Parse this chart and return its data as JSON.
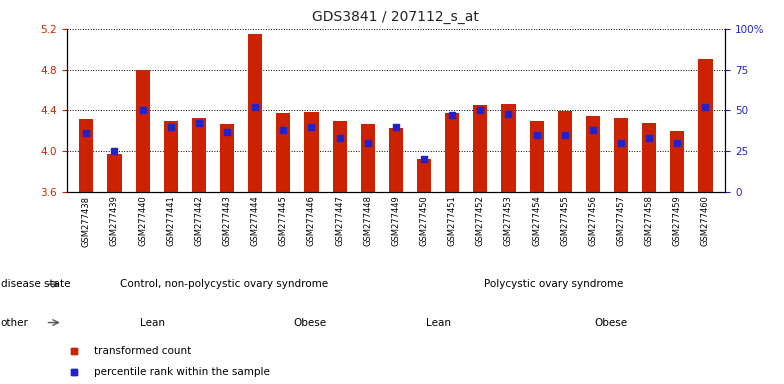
{
  "title": "GDS3841 / 207112_s_at",
  "samples": [
    "GSM277438",
    "GSM277439",
    "GSM277440",
    "GSM277441",
    "GSM277442",
    "GSM277443",
    "GSM277444",
    "GSM277445",
    "GSM277446",
    "GSM277447",
    "GSM277448",
    "GSM277449",
    "GSM277450",
    "GSM277451",
    "GSM277452",
    "GSM277453",
    "GSM277454",
    "GSM277455",
    "GSM277456",
    "GSM277457",
    "GSM277458",
    "GSM277459",
    "GSM277460"
  ],
  "bar_values": [
    4.32,
    3.97,
    4.8,
    4.3,
    4.33,
    4.27,
    5.15,
    4.37,
    4.38,
    4.3,
    4.27,
    4.23,
    3.92,
    4.37,
    4.45,
    4.46,
    4.3,
    4.39,
    4.35,
    4.33,
    4.28,
    4.2,
    4.9
  ],
  "percentile_values": [
    36,
    25,
    50,
    40,
    42,
    37,
    52,
    38,
    40,
    33,
    30,
    40,
    20,
    47,
    50,
    48,
    35,
    35,
    38,
    30,
    33,
    30,
    52
  ],
  "ylim_left": [
    3.6,
    5.2
  ],
  "ylim_right": [
    0,
    100
  ],
  "yticks_left": [
    3.6,
    4.0,
    4.4,
    4.8,
    5.2
  ],
  "yticks_right": [
    0,
    25,
    50,
    75,
    100
  ],
  "ytick_labels_right": [
    "0",
    "25",
    "50",
    "75",
    "100%"
  ],
  "bar_color": "#CC2200",
  "marker_color": "#2222CC",
  "bar_bottom": 3.6,
  "disease_state_groups": [
    {
      "label": "Control, non-polycystic ovary syndrome",
      "start": 0,
      "end": 11,
      "color": "#99EE99"
    },
    {
      "label": "Polycystic ovary syndrome",
      "start": 11,
      "end": 23,
      "color": "#55DD55"
    }
  ],
  "other_groups": [
    {
      "label": "Lean",
      "start": 0,
      "end": 6,
      "color": "#EE88EE"
    },
    {
      "label": "Obese",
      "start": 6,
      "end": 11,
      "color": "#DD55DD"
    },
    {
      "label": "Lean",
      "start": 11,
      "end": 15,
      "color": "#EE88EE"
    },
    {
      "label": "Obese",
      "start": 15,
      "end": 23,
      "color": "#DD55DD"
    }
  ],
  "legend_items": [
    {
      "label": "transformed count",
      "color": "#CC2200"
    },
    {
      "label": "percentile rank within the sample",
      "color": "#2222CC"
    }
  ],
  "disease_row_label": "disease state",
  "other_row_label": "other",
  "left_axis_color": "#CC2200",
  "right_axis_color": "#2222CC",
  "tick_bg_color": "#CCCCCC",
  "fig_width": 7.84,
  "fig_height": 3.84,
  "dpi": 100
}
